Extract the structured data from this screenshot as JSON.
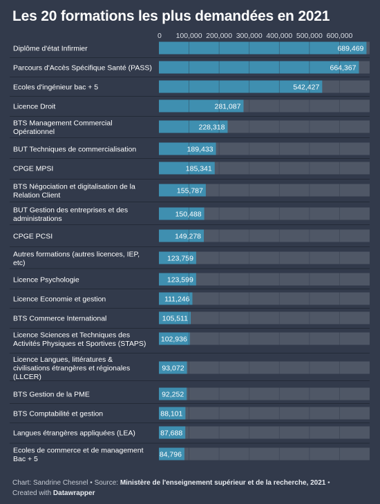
{
  "title": "Les 20 formations les plus demandées en 2021",
  "colors": {
    "background": "#323a4b",
    "track": "#4f5766",
    "bar": "#3f8fb0",
    "separator": "#232a37",
    "text": "#ffffff",
    "footer_text": "#c5cad3"
  },
  "footer": {
    "chart_prefix": "Chart: ",
    "author": "Sandrine Chesnel",
    "source_prefix": "Source: ",
    "source": "Ministère de l'enseignement supérieur et de la recherche, 2021",
    "created_prefix": "Created with ",
    "tool": "Datawrapper"
  },
  "chart_data": {
    "type": "bar",
    "orientation": "horizontal",
    "title": "Les 20 formations les plus demandées en 2021",
    "xlim": [
      0,
      700000
    ],
    "x_ticks": [
      0,
      100000,
      200000,
      300000,
      400000,
      500000,
      600000
    ],
    "x_tick_labels": [
      "0",
      "100,000",
      "200,000",
      "300,000",
      "400,000",
      "500,000",
      "600,000"
    ],
    "grid": true,
    "categories": [
      [
        "Diplôme d'état Infirmier"
      ],
      [
        "Parcours d'Accès Spécifique Santé (PASS)"
      ],
      [
        "Ecoles d'ingénieur bac + 5"
      ],
      [
        "Licence Droit"
      ],
      [
        "BTS Management Commercial",
        "Opérationnel"
      ],
      [
        "BUT Techniques de commercialisation"
      ],
      [
        "CPGE MPSI"
      ],
      [
        "BTS Négociation et digitalisation de la",
        "Relation Client"
      ],
      [
        "BUT Gestion des entreprises et des",
        "administrations"
      ],
      [
        "CPGE PCSI"
      ],
      [
        "Autres formations (autres licences, IEP,",
        "etc)"
      ],
      [
        "Licence Psychologie"
      ],
      [
        "Licence Economie et gestion"
      ],
      [
        "BTS Commerce International"
      ],
      [
        "Licence Sciences et Techniques des",
        "Activités Physiques et Sportives (STAPS)"
      ],
      [
        "Licence Langues, littératures &",
        "civilisations étrangères et régionales",
        "(LLCER)"
      ],
      [
        "BTS Gestion de la PME"
      ],
      [
        "BTS Comptabilité et gestion"
      ],
      [
        "Langues étrangères appliquées (LEA)"
      ],
      [
        "Ecoles de commerce et de management",
        "Bac + 5"
      ]
    ],
    "values": [
      689469,
      664367,
      542427,
      281087,
      228318,
      189433,
      185341,
      155787,
      150488,
      149278,
      123759,
      123599,
      111246,
      105511,
      102936,
      93072,
      92252,
      88101,
      87688,
      84796
    ],
    "value_labels": [
      "689,469",
      "664,367",
      "542,427",
      "281,087",
      "228,318",
      "189,433",
      "185,341",
      "155,787",
      "150,488",
      "149,278",
      "123,759",
      "123,599",
      "111,246",
      "105,511",
      "102,936",
      "93,072",
      "92,252",
      "88,101",
      "87,688",
      "84,796"
    ]
  }
}
